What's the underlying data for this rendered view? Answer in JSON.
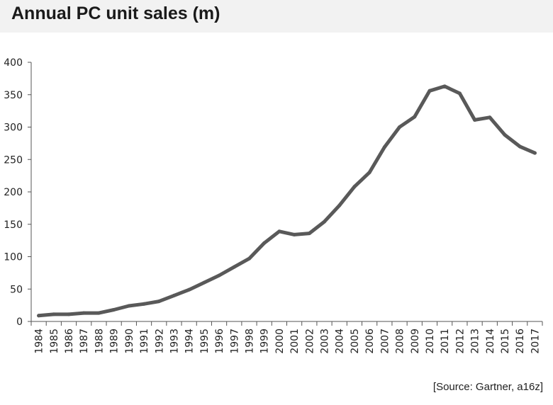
{
  "chart_data": {
    "type": "line",
    "title": "Annual PC unit sales (m)",
    "source": "[Source: Gartner, a16z]",
    "xlabel": "",
    "ylabel": "",
    "ylim": [
      0,
      400
    ],
    "y_ticks": [
      "0",
      "50",
      "100",
      "150",
      "200",
      "250",
      "300",
      "350",
      "400"
    ],
    "grid": false,
    "legend": "none",
    "x": [
      "1984",
      "1985",
      "1986",
      "1987",
      "1988",
      "1989",
      "1990",
      "1991",
      "1992",
      "1993",
      "1994",
      "1995",
      "1996",
      "1997",
      "1998",
      "1999",
      "2000",
      "2001",
      "2002",
      "2003",
      "2004",
      "2005",
      "2006",
      "2007",
      "2008",
      "2009",
      "2010",
      "2011",
      "2012",
      "2013",
      "2014",
      "2015",
      "2016",
      "2017"
    ],
    "series": [
      {
        "values": [
          9,
          11,
          11,
          13,
          13,
          18,
          24,
          27,
          31,
          40,
          49,
          60,
          71,
          84,
          97,
          121,
          139,
          134,
          136,
          154,
          179,
          208,
          230,
          269,
          300,
          316,
          356,
          363,
          352,
          311,
          315,
          288,
          270,
          260
        ],
        "color": "#595959"
      }
    ]
  }
}
